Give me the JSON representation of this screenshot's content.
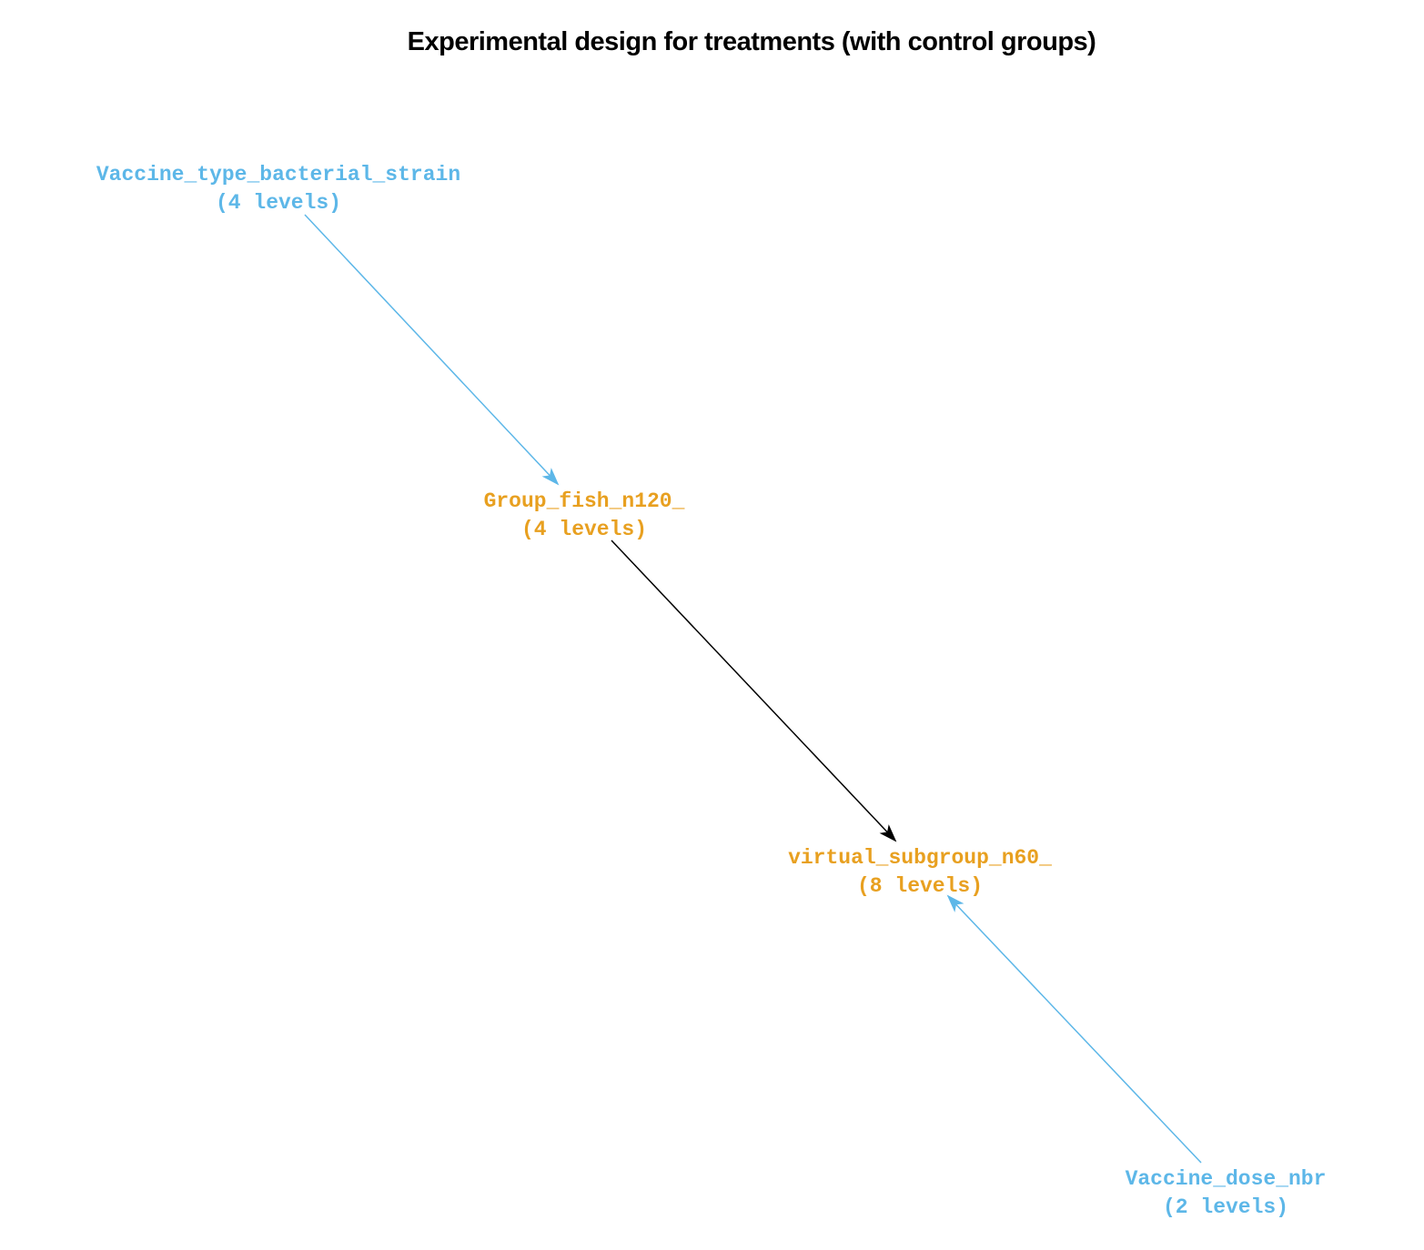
{
  "title": "Experimental design for treatments (with control groups)",
  "colors": {
    "treatment_factor": "#5DB7E8",
    "grouping_factor": "#E8A020",
    "nesting_edge": "#000000"
  },
  "nodes": [
    {
      "id": "vaccine_type",
      "name": "Vaccine_type_bacterial_strain",
      "levels_label": "(4 levels)",
      "kind": "treatment_factor"
    },
    {
      "id": "group_fish",
      "name": "Group_fish_n120_",
      "levels_label": "(4 levels)",
      "kind": "grouping_factor"
    },
    {
      "id": "virtual_subgroup",
      "name": "virtual_subgroup_n60_",
      "levels_label": "(8 levels)",
      "kind": "grouping_factor"
    },
    {
      "id": "vaccine_dose",
      "name": "Vaccine_dose_nbr",
      "levels_label": "(2 levels)",
      "kind": "treatment_factor"
    }
  ],
  "edges": [
    {
      "from": "vaccine_type",
      "to": "group_fish",
      "kind": "treatment_factor"
    },
    {
      "from": "group_fish",
      "to": "virtual_subgroup",
      "kind": "nesting_edge"
    },
    {
      "from": "vaccine_dose",
      "to": "virtual_subgroup",
      "kind": "treatment_factor"
    }
  ]
}
